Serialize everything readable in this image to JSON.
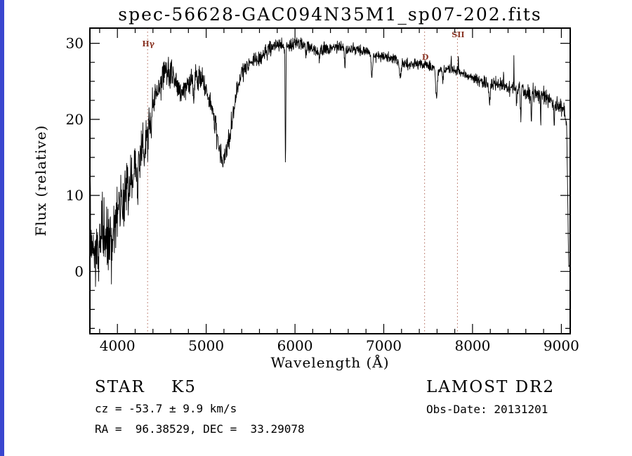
{
  "figure": {
    "title": "spec-56628-GAC094N35M1_sp07-202.fits",
    "background_color": "#ffffff",
    "frame_color": "#000000",
    "left_edge_strip_color": "#3a46cf"
  },
  "annotations": {
    "class_line": "STAR    K5",
    "survey": "LAMOST DR2",
    "cz_line": "cz = -53.7 ± 9.9 km/s",
    "obs_date_line": "Obs-Date: 20131201",
    "radec_line": "RA =  96.38529, DEC =  33.29078"
  },
  "chart_data": {
    "type": "line",
    "title": "spec-56628-GAC094N35M1_sp07-202.fits",
    "xlabel": "Wavelength (Å)",
    "ylabel": "Flux (relative)",
    "xlim": [
      3690,
      9100
    ],
    "ylim": [
      -8.2,
      32
    ],
    "x_ticks": [
      4000,
      5000,
      6000,
      7000,
      8000,
      9000
    ],
    "y_ticks": [
      0,
      10,
      20,
      30
    ],
    "x_minor_step": 200,
    "y_minor_step": 2.5,
    "grid": false,
    "legend": "none",
    "line_color": "#000000",
    "marker_color": "#b06858",
    "marker_label_color": "#8b3626",
    "markers": [
      {
        "wavelength": 4340,
        "label": "Hγ",
        "label_dy": 26
      },
      {
        "wavelength": 7460,
        "label": "D",
        "label_dy": 45
      },
      {
        "wavelength": 7830,
        "label": "SII",
        "label_dy": 13
      }
    ],
    "spectrum": {
      "x_start": 3693,
      "x_end": 9090,
      "step": 3,
      "noise_seed": 20131201,
      "continuum": [
        [
          3693,
          14.5
        ],
        [
          3700,
          3
        ],
        [
          3715,
          1
        ],
        [
          3735,
          4.5
        ],
        [
          3760,
          2.5
        ],
        [
          3790,
          4
        ],
        [
          3830,
          5.5
        ],
        [
          3870,
          4.5
        ],
        [
          3910,
          5.5
        ],
        [
          3950,
          7
        ],
        [
          4000,
          8.5
        ],
        [
          4050,
          9.5
        ],
        [
          4100,
          11
        ],
        [
          4150,
          12
        ],
        [
          4200,
          13.5
        ],
        [
          4250,
          15
        ],
        [
          4300,
          17.5
        ],
        [
          4350,
          19.5
        ],
        [
          4400,
          22
        ],
        [
          4450,
          24
        ],
        [
          4500,
          25.5
        ],
        [
          4550,
          26.5
        ],
        [
          4600,
          26.5
        ],
        [
          4650,
          25
        ],
        [
          4700,
          23.5
        ],
        [
          4750,
          24
        ],
        [
          4800,
          24.5
        ],
        [
          4850,
          25
        ],
        [
          4900,
          25.5
        ],
        [
          4950,
          25
        ],
        [
          5000,
          24
        ],
        [
          5050,
          22
        ],
        [
          5100,
          19.5
        ],
        [
          5150,
          16
        ],
        [
          5185,
          14.5
        ],
        [
          5220,
          15.5
        ],
        [
          5260,
          17.5
        ],
        [
          5300,
          20.5
        ],
        [
          5350,
          24
        ],
        [
          5400,
          26
        ],
        [
          5450,
          27
        ],
        [
          5500,
          27.5
        ],
        [
          5550,
          28
        ],
        [
          5600,
          28
        ],
        [
          5650,
          28.5
        ],
        [
          5700,
          29
        ],
        [
          5750,
          29.5
        ],
        [
          5800,
          30
        ],
        [
          5850,
          29.8
        ],
        [
          5900,
          29.6
        ],
        [
          5950,
          29.8
        ],
        [
          6000,
          30
        ],
        [
          6050,
          30.2
        ],
        [
          6100,
          30
        ],
        [
          6150,
          29.5
        ],
        [
          6200,
          29.2
        ],
        [
          6250,
          29
        ],
        [
          6300,
          29
        ],
        [
          6400,
          29.3
        ],
        [
          6500,
          29.5
        ],
        [
          6600,
          29.2
        ],
        [
          6700,
          29.3
        ],
        [
          6800,
          28.8
        ],
        [
          6900,
          28.3
        ],
        [
          7000,
          28.3
        ],
        [
          7100,
          28
        ],
        [
          7200,
          27.6
        ],
        [
          7300,
          27.2
        ],
        [
          7400,
          27.4
        ],
        [
          7500,
          27
        ],
        [
          7600,
          26.6
        ],
        [
          7700,
          26.6
        ],
        [
          7800,
          26.4
        ],
        [
          7900,
          26
        ],
        [
          8000,
          25.5
        ],
        [
          8100,
          25
        ],
        [
          8200,
          24.6
        ],
        [
          8300,
          24.4
        ],
        [
          8400,
          24.2
        ],
        [
          8500,
          23.9
        ],
        [
          8600,
          23.5
        ],
        [
          8700,
          23.2
        ],
        [
          8800,
          23
        ],
        [
          8900,
          22.4
        ],
        [
          8950,
          22
        ],
        [
          9000,
          21.6
        ],
        [
          9040,
          21
        ],
        [
          9060,
          19.5
        ],
        [
          9072,
          10
        ],
        [
          9082,
          1
        ],
        [
          9090,
          0.5
        ]
      ],
      "noise_amplitude": [
        [
          3693,
          5.5
        ],
        [
          3800,
          5
        ],
        [
          3900,
          4.3
        ],
        [
          4000,
          3.8
        ],
        [
          4100,
          3.3
        ],
        [
          4250,
          2.9
        ],
        [
          4400,
          2.3
        ],
        [
          4600,
          1.9
        ],
        [
          4800,
          1.6
        ],
        [
          5000,
          1.6
        ],
        [
          5200,
          1.5
        ],
        [
          5400,
          1.2
        ],
        [
          5600,
          1.05
        ],
        [
          5800,
          0.95
        ],
        [
          6000,
          0.9
        ],
        [
          6300,
          0.85
        ],
        [
          6600,
          0.75
        ],
        [
          7000,
          0.7
        ],
        [
          7400,
          0.65
        ],
        [
          7800,
          0.65
        ],
        [
          8100,
          0.75
        ],
        [
          8400,
          0.9
        ],
        [
          8600,
          1.1
        ],
        [
          8800,
          1.3
        ],
        [
          9000,
          1.2
        ],
        [
          9090,
          0.6
        ]
      ],
      "absorption_features": [
        {
          "center": 3934,
          "depth": 5,
          "sigma": 6
        },
        {
          "center": 3968,
          "depth": 4,
          "sigma": 6
        },
        {
          "center": 4227,
          "depth": 3,
          "sigma": 5
        },
        {
          "center": 4305,
          "depth": 3,
          "sigma": 8
        },
        {
          "center": 4340,
          "depth": 2.5,
          "sigma": 5
        },
        {
          "center": 4383,
          "depth": 2.5,
          "sigma": 5
        },
        {
          "center": 4455,
          "depth": 2,
          "sigma": 5
        },
        {
          "center": 4861,
          "depth": 2.5,
          "sigma": 5
        },
        {
          "center": 5893,
          "depth": 15.5,
          "sigma": 4
        },
        {
          "center": 6122,
          "depth": 1.5,
          "sigma": 4
        },
        {
          "center": 6276,
          "depth": 1.5,
          "sigma": 5
        },
        {
          "center": 6563,
          "depth": 2.5,
          "sigma": 5
        },
        {
          "center": 6867,
          "depth": 3,
          "sigma": 7
        },
        {
          "center": 7186,
          "depth": 2,
          "sigma": 10
        },
        {
          "center": 7594,
          "depth": 3.5,
          "sigma": 9
        },
        {
          "center": 7665,
          "depth": 1.5,
          "sigma": 5
        },
        {
          "center": 8190,
          "depth": 2.2,
          "sigma": 8
        },
        {
          "center": 8498,
          "depth": 2.5,
          "sigma": 4
        },
        {
          "center": 8542,
          "depth": 3.5,
          "sigma": 4
        },
        {
          "center": 8662,
          "depth": 3,
          "sigma": 4
        },
        {
          "center": 8767,
          "depth": 4,
          "sigma": 3
        },
        {
          "center": 8920,
          "depth": 4.5,
          "sigma": 3
        }
      ],
      "emission_spikes": [
        {
          "center": 6330,
          "height": 1.2,
          "sigma": 2.5
        },
        {
          "center": 7760,
          "height": 1.6,
          "sigma": 2.5
        },
        {
          "center": 7840,
          "height": 2.0,
          "sigma": 2.5
        },
        {
          "center": 8350,
          "height": 1.6,
          "sigma": 2.5
        },
        {
          "center": 8465,
          "height": 3.6,
          "sigma": 2.5
        },
        {
          "center": 8560,
          "height": 1.8,
          "sigma": 2.5
        },
        {
          "center": 8680,
          "height": 1.5,
          "sigma": 2.5
        }
      ]
    }
  }
}
